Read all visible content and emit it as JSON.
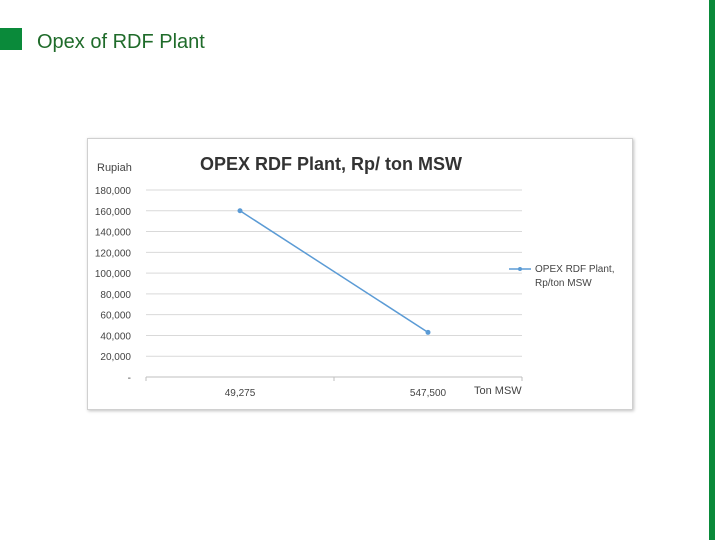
{
  "slide": {
    "title": "Opex of RDF Plant",
    "accent_color": "#0a8a3a"
  },
  "chart_data": {
    "type": "line",
    "title": "OPEX RDF Plant, Rp/ ton MSW",
    "ylabel": "Rupiah",
    "xlabel": "Ton MSW",
    "categories": [
      "49,275",
      "547,500"
    ],
    "series": [
      {
        "name": "OPEX RDF Plant, Rp/ton MSW",
        "values": [
          160000,
          43000
        ],
        "color": "#5b9bd5"
      }
    ],
    "ylim": [
      0,
      180000
    ],
    "yticks": [
      0,
      20000,
      40000,
      60000,
      80000,
      100000,
      120000,
      140000,
      160000,
      180000
    ],
    "ytick_labels": [
      "-",
      "20,000",
      "40,000",
      "60,000",
      "80,000",
      "100,000",
      "120,000",
      "140,000",
      "160,000",
      "180,000"
    ],
    "grid": true,
    "legend": "right"
  }
}
